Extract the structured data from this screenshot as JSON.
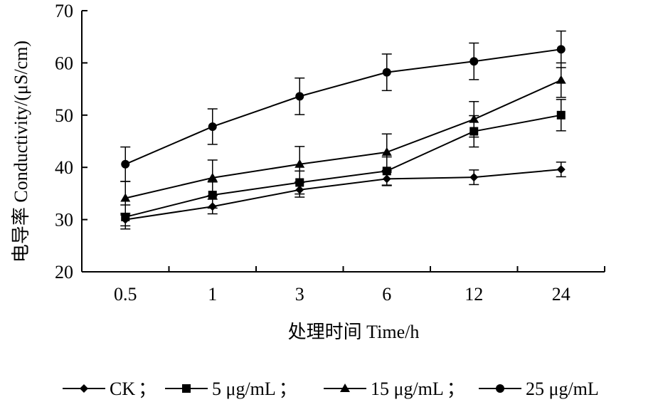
{
  "chart_data": {
    "type": "line",
    "xlabel": "处理时间 Time/h",
    "ylabel": "电导率 Conductivity/(μS/cm)",
    "categories": [
      "0.5",
      "1",
      "3",
      "6",
      "12",
      "24"
    ],
    "ylim": [
      20,
      70
    ],
    "yticks": [
      "20",
      "30",
      "40",
      "50",
      "60",
      "70"
    ],
    "grid": false,
    "legend_position": "bottom",
    "legend_separator": "；",
    "series": [
      {
        "name": "CK",
        "marker": "diamond",
        "values": [
          30.0,
          32.5,
          35.7,
          37.8,
          38.1,
          39.6
        ],
        "errors": [
          1.2,
          1.4,
          1.4,
          1.3,
          1.4,
          1.4
        ]
      },
      {
        "name": "5 μg/mL",
        "marker": "square",
        "values": [
          30.5,
          34.7,
          37.1,
          39.3,
          46.9,
          50.0
        ],
        "errors": [
          2.3,
          2.5,
          2.2,
          2.7,
          3.0,
          3.0
        ]
      },
      {
        "name": "15 μg/mL",
        "marker": "triangle",
        "values": [
          34.1,
          38.0,
          40.6,
          42.9,
          49.2,
          56.7
        ],
        "errors": [
          3.2,
          3.4,
          3.4,
          3.5,
          3.4,
          3.3
        ]
      },
      {
        "name": "25 μg/mL",
        "marker": "circle",
        "values": [
          40.6,
          47.8,
          53.6,
          58.2,
          60.3,
          62.6
        ],
        "errors": [
          3.3,
          3.4,
          3.5,
          3.5,
          3.5,
          3.5
        ]
      }
    ]
  }
}
